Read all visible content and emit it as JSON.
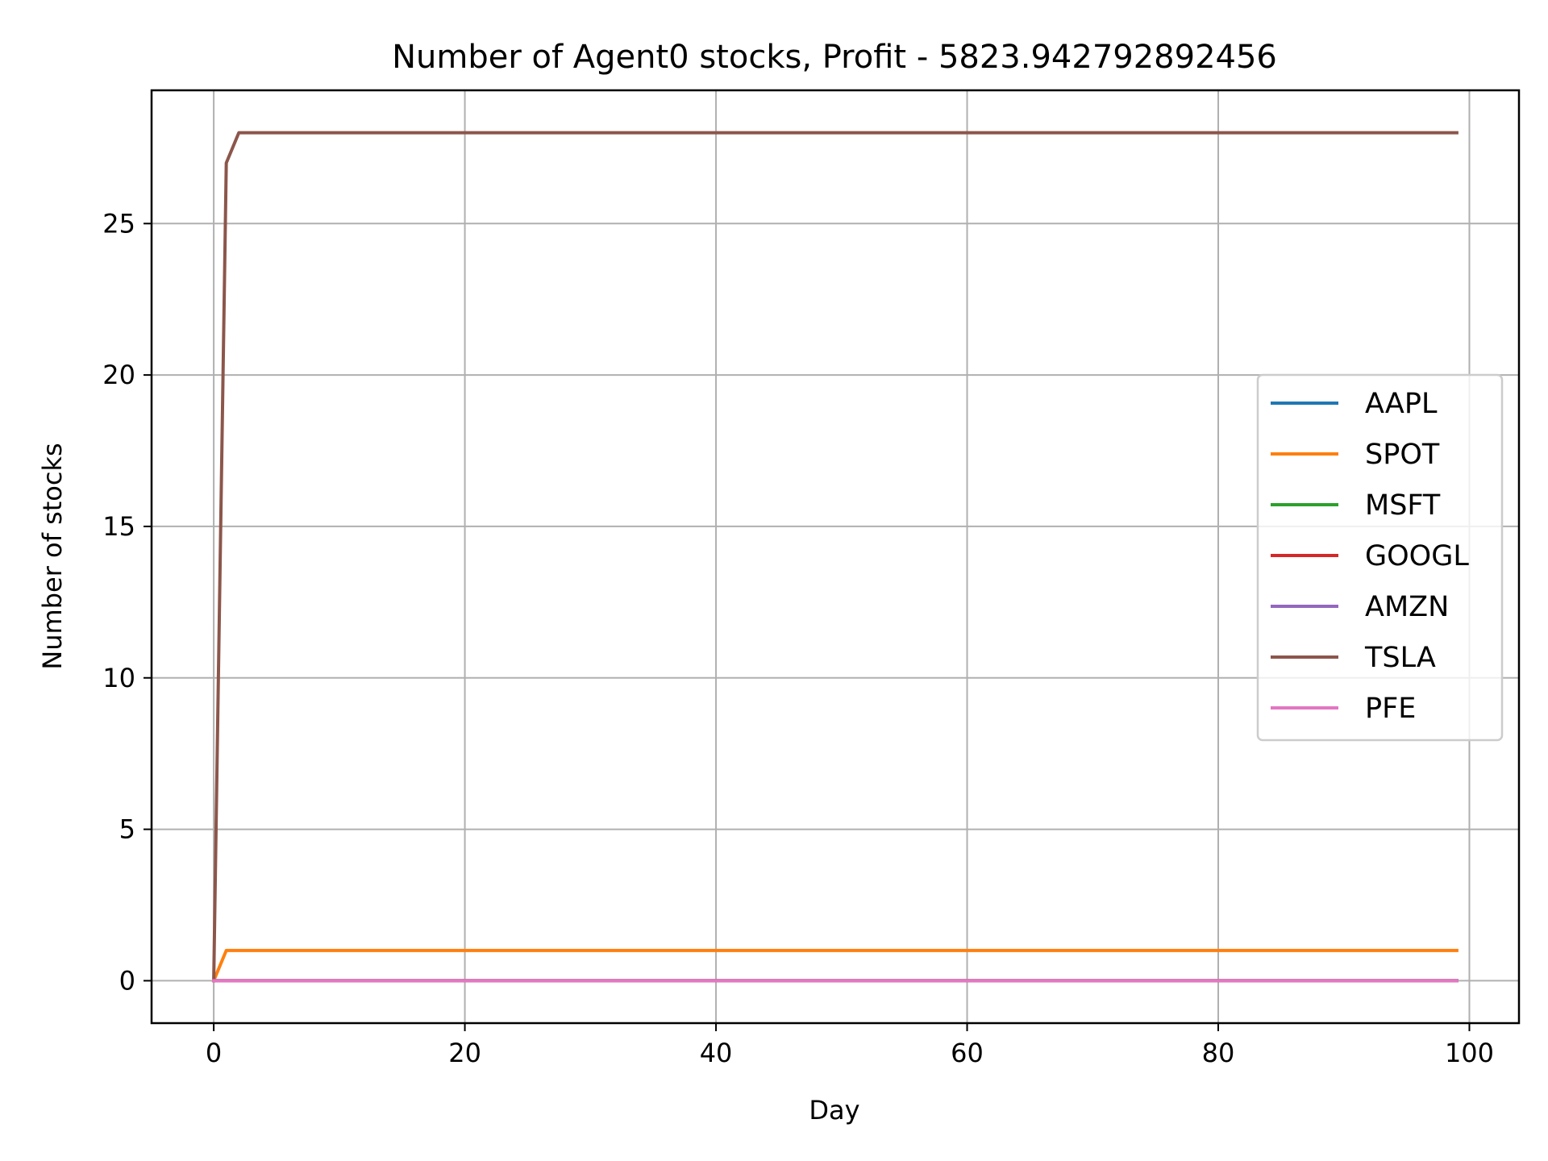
{
  "chart_data": {
    "type": "line",
    "title": "Number of Agent0 stocks, Profit - 5823.942792892456",
    "xlabel": "Day",
    "ylabel": "Number of stocks",
    "xlim": [
      -4.95,
      103.95
    ],
    "ylim": [
      -1.4,
      29.4
    ],
    "xticks": [
      0,
      20,
      40,
      60,
      80,
      100
    ],
    "xtick_labels": [
      "0",
      "20",
      "40",
      "60",
      "80",
      "100"
    ],
    "yticks": [
      0,
      5,
      10,
      15,
      20,
      25
    ],
    "ytick_labels": [
      "0",
      "5",
      "10",
      "15",
      "20",
      "25"
    ],
    "grid": true,
    "legend_position": "center-right",
    "x_range": [
      0,
      99
    ],
    "series": [
      {
        "name": "AAPL",
        "color": "#1f77b4",
        "points": [
          [
            0,
            0
          ],
          [
            99,
            0
          ]
        ]
      },
      {
        "name": "SPOT",
        "color": "#ff7f0e",
        "points": [
          [
            0,
            0
          ],
          [
            1,
            1
          ],
          [
            99,
            1
          ]
        ]
      },
      {
        "name": "MSFT",
        "color": "#2ca02c",
        "points": [
          [
            0,
            0
          ],
          [
            99,
            0
          ]
        ]
      },
      {
        "name": "GOOGL",
        "color": "#d62728",
        "points": [
          [
            0,
            0
          ],
          [
            99,
            0
          ]
        ]
      },
      {
        "name": "AMZN",
        "color": "#9467bd",
        "points": [
          [
            0,
            0
          ],
          [
            99,
            0
          ]
        ]
      },
      {
        "name": "TSLA",
        "color": "#8c564b",
        "points": [
          [
            0,
            0
          ],
          [
            1,
            27
          ],
          [
            2,
            28
          ],
          [
            99,
            28
          ]
        ]
      },
      {
        "name": "PFE",
        "color": "#e377c2",
        "points": [
          [
            0,
            0
          ],
          [
            99,
            0
          ]
        ]
      }
    ]
  }
}
